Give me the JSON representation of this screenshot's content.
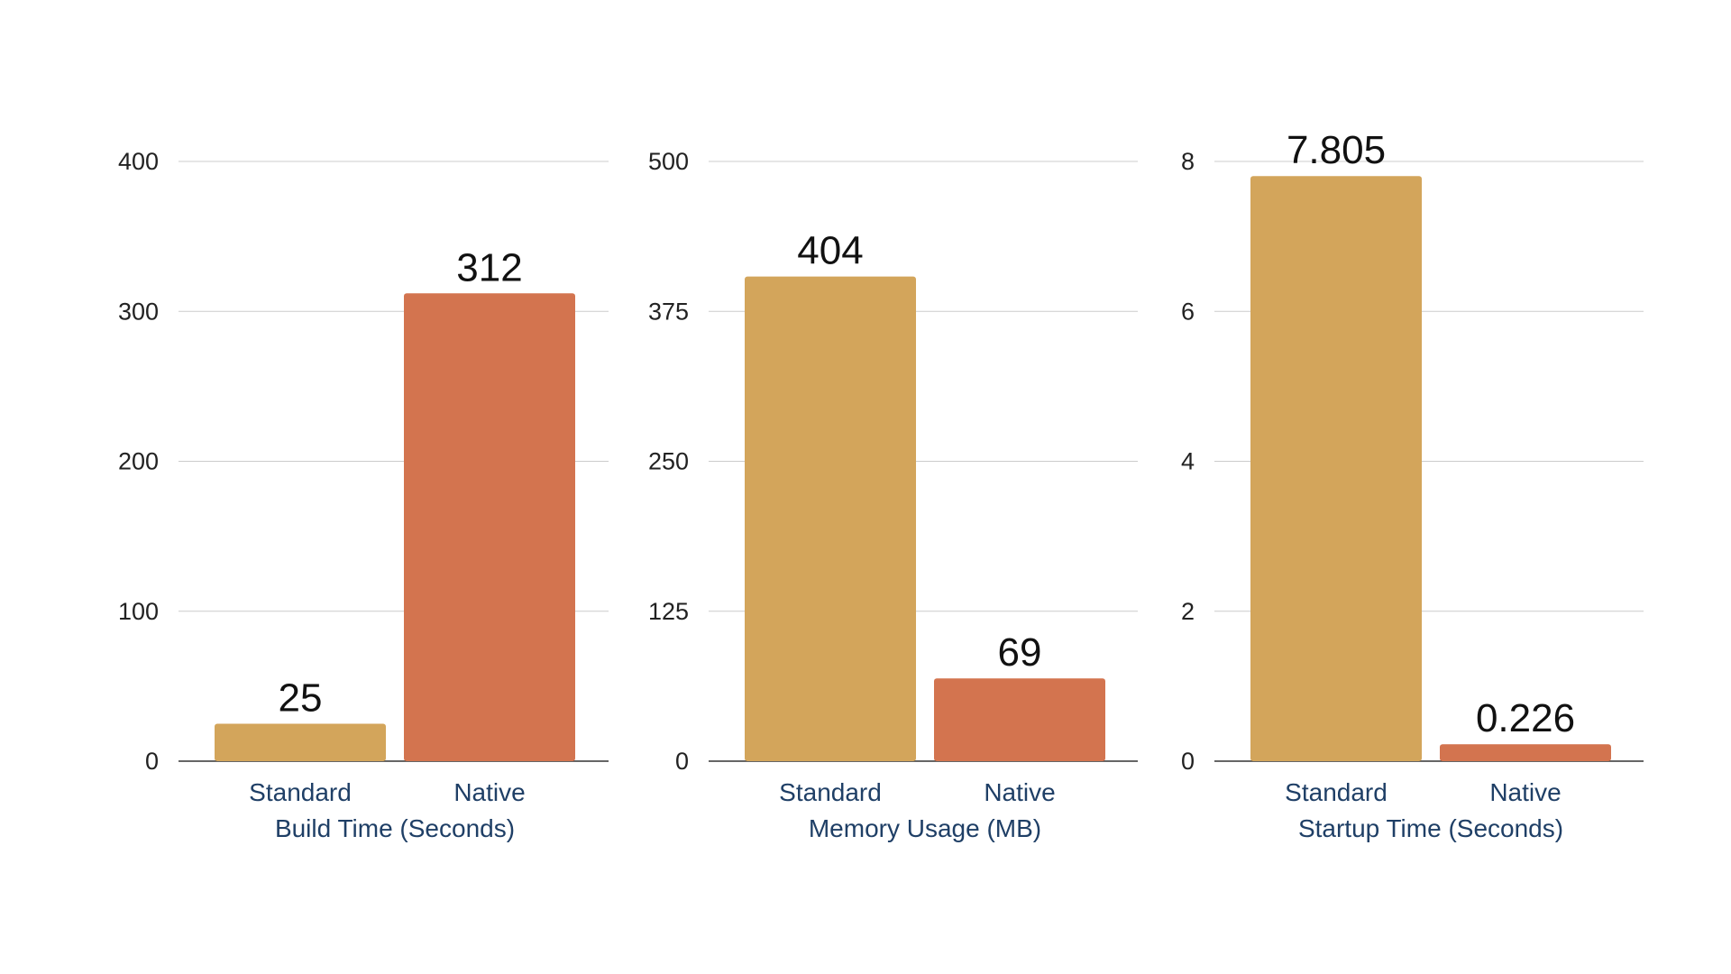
{
  "colors": {
    "standard": "#d3a55b",
    "native": "#d3744f",
    "gridline": "#cccccc",
    "axis_line": "#333333",
    "tick_label": "#222222",
    "category_label": "#1f3f66",
    "value_label": "#111111"
  },
  "chart_data": [
    {
      "type": "bar",
      "categories": [
        "Standard",
        "Native"
      ],
      "values": [
        25,
        312
      ],
      "data_labels": [
        "25",
        "312"
      ],
      "xlabel": "Build Time (Seconds)",
      "ylabel": "",
      "ylim": [
        0,
        400
      ],
      "yticks": [
        0,
        100,
        200,
        300,
        400
      ],
      "ytick_labels": [
        "0",
        "100",
        "200",
        "300",
        "400"
      ],
      "grid": true
    },
    {
      "type": "bar",
      "categories": [
        "Standard",
        "Native"
      ],
      "values": [
        404,
        69
      ],
      "data_labels": [
        "404",
        "69"
      ],
      "xlabel": "Memory Usage (MB)",
      "ylabel": "",
      "ylim": [
        0,
        500
      ],
      "yticks": [
        0,
        125,
        250,
        375,
        500
      ],
      "ytick_labels": [
        "0",
        "125",
        "250",
        "375",
        "500"
      ],
      "grid": true
    },
    {
      "type": "bar",
      "categories": [
        "Standard",
        "Native"
      ],
      "values": [
        7.805,
        0.226
      ],
      "data_labels": [
        "7.805",
        "0.226"
      ],
      "xlabel": "Startup Time (Seconds)",
      "ylabel": "",
      "ylim": [
        0,
        8
      ],
      "yticks": [
        0,
        2,
        4,
        6,
        8
      ],
      "ytick_labels": [
        "0",
        "2",
        "4",
        "6",
        "8"
      ],
      "grid": true
    }
  ]
}
